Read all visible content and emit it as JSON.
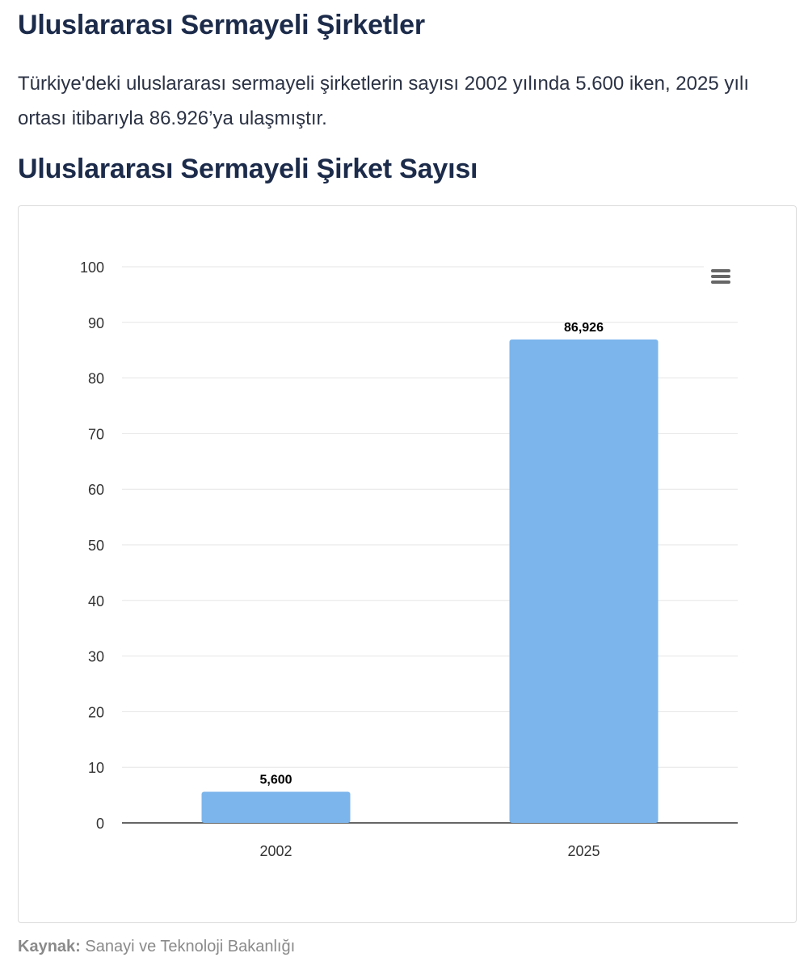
{
  "article": {
    "heading": "Uluslararası Sermayeli Şirketler",
    "intro": "Türkiye'deki uluslararası sermayeli şirketlerin sayısı 2002 yılında 5.600 iken, 2025 yılı ortası itibarıyla 86.926’ya ulaşmıştır.",
    "chart_heading": "Uluslararası Sermayeli Şirket Sayısı",
    "source_label": "Kaynak:",
    "source_text": "Sanayi ve Teknoloji Bakanlığı"
  },
  "chart_menu": {
    "icon": "hamburger-menu-icon"
  },
  "chart_data": {
    "type": "bar",
    "categories": [
      "2002",
      "2025"
    ],
    "values": [
      5.6,
      86.926
    ],
    "data_labels": [
      "5,600",
      "86,926"
    ],
    "title": "",
    "xlabel": "",
    "ylabel": "",
    "ylim": [
      0,
      100
    ],
    "yticks": [
      0,
      10,
      20,
      30,
      40,
      50,
      60,
      70,
      80,
      90,
      100
    ],
    "grid": true,
    "legend": "none",
    "bar_color": "#7cb5ec"
  }
}
